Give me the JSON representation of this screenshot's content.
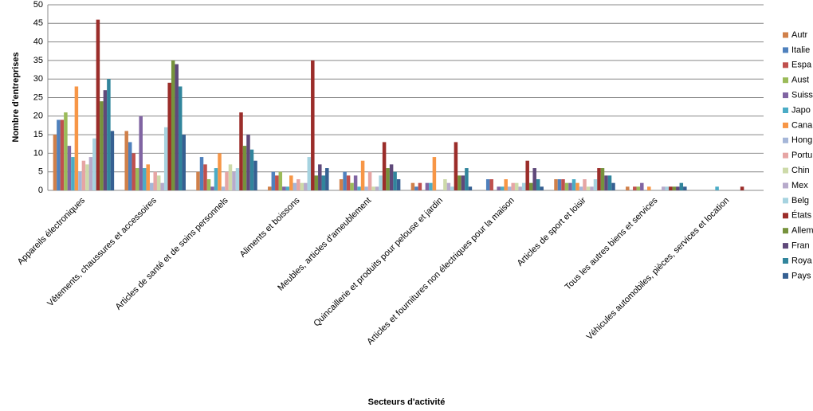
{
  "chart_data": {
    "type": "bar",
    "x_label": "Secteurs d'activité",
    "y_label": "Nombre d'entreprises",
    "categories": [
      "Appareils électroniques",
      "Vêtements, chaussures et accessoires",
      "Articles de santé et de soins personnels",
      "Aliments et boissons",
      "Meubles, articles d'ameublement",
      "Quincaillerie et produits pour pelouse et jardin",
      "Articles et fournitures non électriques pour la maison",
      "Articles de sport et loisir",
      "Tous les autres biens et services",
      "Véhicules automobiles, pièces, services et location"
    ],
    "series": [
      {
        "name": "Autr",
        "color": "#d0804a",
        "values": [
          15,
          16,
          5,
          1,
          3,
          2,
          0,
          3,
          1,
          0
        ]
      },
      {
        "name": "Italie",
        "color": "#4f81bd",
        "values": [
          19,
          13,
          9,
          5,
          5,
          1,
          3,
          3,
          0,
          0
        ]
      },
      {
        "name": "Espa",
        "color": "#c0504d",
        "values": [
          19,
          10,
          7,
          4,
          4,
          2,
          3,
          3,
          1,
          0
        ]
      },
      {
        "name": "Aust",
        "color": "#9bbb59",
        "values": [
          21,
          6,
          3,
          5,
          2,
          0,
          0,
          2,
          1,
          0
        ]
      },
      {
        "name": "Suiss",
        "color": "#8064a2",
        "values": [
          12,
          20,
          1,
          1,
          4,
          2,
          1,
          2,
          2,
          0
        ]
      },
      {
        "name": "Japo",
        "color": "#4bacc6",
        "values": [
          9,
          6,
          6,
          1,
          1,
          2,
          1,
          3,
          0,
          1
        ]
      },
      {
        "name": "Cana",
        "color": "#f79646",
        "values": [
          28,
          7,
          10,
          4,
          8,
          9,
          3,
          2,
          1,
          0
        ]
      },
      {
        "name": "Hong",
        "color": "#a5b6d8",
        "values": [
          5,
          2,
          1,
          2,
          1,
          0,
          1,
          1,
          0,
          0
        ]
      },
      {
        "name": "Portu",
        "color": "#e6a5a4",
        "values": [
          8,
          5,
          5,
          3,
          5,
          0,
          2,
          3,
          0,
          0
        ]
      },
      {
        "name": "Chin",
        "color": "#cddaa9",
        "values": [
          7,
          4,
          7,
          2,
          1,
          3,
          2,
          1,
          0,
          0
        ]
      },
      {
        "name": "Mex",
        "color": "#b7aacb",
        "values": [
          9,
          2,
          5,
          2,
          1,
          2,
          1,
          1,
          1,
          0
        ]
      },
      {
        "name": "Belg",
        "color": "#a6d3e0",
        "values": [
          14,
          17,
          6,
          9,
          4,
          1,
          2,
          3,
          1,
          0
        ]
      },
      {
        "name": "États",
        "color": "#9b2d2a",
        "values": [
          46,
          29,
          21,
          35,
          13,
          13,
          8,
          6,
          1,
          1
        ]
      },
      {
        "name": "Allem",
        "color": "#76923c",
        "values": [
          24,
          35,
          12,
          4,
          6,
          4,
          2,
          6,
          1,
          0
        ]
      },
      {
        "name": "Fran",
        "color": "#5f497a",
        "values": [
          27,
          34,
          15,
          7,
          7,
          4,
          6,
          4,
          1,
          0
        ]
      },
      {
        "name": "Roya",
        "color": "#31859c",
        "values": [
          30,
          28,
          11,
          4,
          5,
          6,
          3,
          4,
          2,
          0
        ]
      },
      {
        "name": "Pays",
        "color": "#366092",
        "values": [
          16,
          15,
          8,
          6,
          3,
          1,
          1,
          2,
          1,
          0
        ]
      }
    ],
    "ylim": [
      0,
      50
    ],
    "yticks": [
      0,
      5,
      10,
      15,
      20,
      25,
      30,
      35,
      40,
      45,
      50
    ],
    "grid": true
  }
}
